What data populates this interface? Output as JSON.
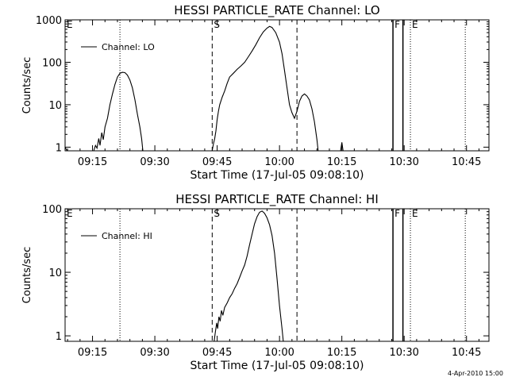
{
  "chart_data": [
    {
      "type": "line",
      "title": "HESSI PARTICLE_RATE Channel: LO",
      "xlabel": "Start Time (17-Jul-05 09:08:10)",
      "ylabel": "Counts/sec",
      "yscale": "log",
      "xlim": [
        9.14,
        10.84
      ],
      "ylim": [
        0.82,
        1000
      ],
      "x_ticks": [
        9.25,
        9.5,
        9.75,
        10.0,
        10.25,
        10.5,
        10.75
      ],
      "x_tick_labels": [
        "09:15",
        "09:30",
        "09:45",
        "10:00",
        "10:15",
        "10:30",
        "10:45"
      ],
      "y_ticks": [
        1,
        10,
        100,
        1000
      ],
      "y_tick_labels": [
        "1",
        "10",
        "100",
        "1000"
      ],
      "legend": {
        "label": "Channel: LO",
        "placement": "top-left"
      },
      "markers": [
        {
          "label": "E",
          "x": 9.14,
          "style": "none"
        },
        {
          "label": "",
          "x": 9.36,
          "style": "dotted"
        },
        {
          "label": "S",
          "x": 9.73,
          "style": "dashed"
        },
        {
          "label": "",
          "x": 10.07,
          "style": "dashed"
        },
        {
          "label": "F",
          "x": 10.455,
          "style": "solid"
        },
        {
          "label": "",
          "x": 10.495,
          "style": "solid"
        },
        {
          "label": "E",
          "x": 10.525,
          "style": "dotted"
        },
        {
          "label": "",
          "x": 10.745,
          "style": "dotted"
        }
      ],
      "series": [
        {
          "name": "Channel: LO",
          "segments": [
            [
              [
                9.14,
                1
              ],
              [
                9.148,
                0.82
              ]
            ],
            [
              [
                9.255,
                0.82
              ],
              [
                9.262,
                1.1
              ],
              [
                9.268,
                0.95
              ],
              [
                9.275,
                1.6
              ],
              [
                9.28,
                1.1
              ],
              [
                9.287,
                2.2
              ],
              [
                9.293,
                1.5
              ],
              [
                9.3,
                3
              ],
              [
                9.31,
                4.8
              ],
              [
                9.32,
                10
              ],
              [
                9.33,
                18
              ],
              [
                9.34,
                30
              ],
              [
                9.35,
                45
              ],
              [
                9.36,
                55
              ],
              [
                9.37,
                58
              ],
              [
                9.38,
                57
              ],
              [
                9.39,
                50
              ],
              [
                9.4,
                38
              ],
              [
                9.41,
                25
              ],
              [
                9.42,
                13
              ],
              [
                9.43,
                6
              ],
              [
                9.44,
                3
              ],
              [
                9.447,
                1.6
              ],
              [
                9.452,
                0.82
              ]
            ],
            [
              [
                9.73,
                0.82
              ],
              [
                9.735,
                1.2
              ],
              [
                9.74,
                1.6
              ],
              [
                9.745,
                2.4
              ],
              [
                9.75,
                4.5
              ],
              [
                9.755,
                7
              ],
              [
                9.76,
                10
              ],
              [
                9.77,
                15
              ],
              [
                9.78,
                21
              ],
              [
                9.79,
                32
              ],
              [
                9.8,
                45
              ],
              [
                9.815,
                55
              ],
              [
                9.83,
                68
              ],
              [
                9.845,
                82
              ],
              [
                9.86,
                100
              ],
              [
                9.875,
                135
              ],
              [
                9.89,
                185
              ],
              [
                9.905,
                260
              ],
              [
                9.92,
                380
              ],
              [
                9.935,
                520
              ],
              [
                9.95,
                640
              ],
              [
                9.96,
                700
              ],
              [
                9.97,
                660
              ],
              [
                9.985,
                500
              ],
              [
                10.0,
                300
              ],
              [
                10.01,
                160
              ],
              [
                10.02,
                65
              ],
              [
                10.03,
                25
              ],
              [
                10.04,
                10
              ],
              [
                10.05,
                6.5
              ],
              [
                10.06,
                4.8
              ],
              [
                10.07,
                7
              ],
              [
                10.08,
                12
              ],
              [
                10.09,
                16
              ],
              [
                10.1,
                18
              ],
              [
                10.11,
                16
              ],
              [
                10.12,
                13
              ],
              [
                10.13,
                8
              ],
              [
                10.14,
                4
              ],
              [
                10.15,
                1.5
              ],
              [
                10.155,
                0.82
              ]
            ],
            [
              [
                10.245,
                0.82
              ],
              [
                10.25,
                1.3
              ],
              [
                10.255,
                0.82
              ]
            ]
          ]
        }
      ]
    },
    {
      "type": "line",
      "title": "HESSI PARTICLE_RATE Channel: HI",
      "xlabel": "Start Time (17-Jul-05 09:08:10)",
      "ylabel": "Counts/sec",
      "yscale": "log",
      "xlim": [
        9.14,
        10.84
      ],
      "ylim": [
        0.82,
        100
      ],
      "x_ticks": [
        9.25,
        9.5,
        9.75,
        10.0,
        10.25,
        10.5,
        10.75
      ],
      "x_tick_labels": [
        "09:15",
        "09:30",
        "09:45",
        "10:00",
        "10:15",
        "10:30",
        "10:45"
      ],
      "y_ticks": [
        1,
        10,
        100
      ],
      "y_tick_labels": [
        "1",
        "10",
        "100"
      ],
      "legend": {
        "label": "Channel: HI",
        "placement": "top-left"
      },
      "markers": [
        {
          "label": "E",
          "x": 9.14,
          "style": "none"
        },
        {
          "label": "",
          "x": 9.36,
          "style": "dotted"
        },
        {
          "label": "S",
          "x": 9.73,
          "style": "dashed"
        },
        {
          "label": "",
          "x": 10.07,
          "style": "dashed"
        },
        {
          "label": "F",
          "x": 10.455,
          "style": "solid"
        },
        {
          "label": "",
          "x": 10.495,
          "style": "solid"
        },
        {
          "label": "E",
          "x": 10.525,
          "style": "dotted"
        },
        {
          "label": "",
          "x": 10.745,
          "style": "dotted"
        }
      ],
      "series": [
        {
          "name": "Channel: HI",
          "segments": [
            [
              [
                9.738,
                0.82
              ],
              [
                9.742,
                1.1
              ],
              [
                9.748,
                1.6
              ],
              [
                9.752,
                1.3
              ],
              [
                9.757,
                2.0
              ],
              [
                9.762,
                1.7
              ],
              [
                9.767,
                2.5
              ],
              [
                9.773,
                2.1
              ],
              [
                9.78,
                2.8
              ],
              [
                9.79,
                3.3
              ],
              [
                9.8,
                4
              ],
              [
                9.81,
                4.6
              ],
              [
                9.82,
                5.6
              ],
              [
                9.83,
                6.6
              ],
              [
                9.84,
                8.3
              ],
              [
                9.85,
                10.5
              ],
              [
                9.86,
                13
              ],
              [
                9.87,
                18
              ],
              [
                9.88,
                27
              ],
              [
                9.89,
                40
              ],
              [
                9.9,
                58
              ],
              [
                9.91,
                75
              ],
              [
                9.92,
                88
              ],
              [
                9.93,
                92
              ],
              [
                9.94,
                85
              ],
              [
                9.95,
                72
              ],
              [
                9.96,
                56
              ],
              [
                9.97,
                38
              ],
              [
                9.98,
                20
              ],
              [
                9.99,
                8
              ],
              [
                10.0,
                3
              ],
              [
                10.01,
                1.3
              ],
              [
                10.015,
                0.82
              ]
            ]
          ]
        }
      ]
    }
  ],
  "footer": {
    "timestamp": "4-Apr-2010 15:00"
  }
}
